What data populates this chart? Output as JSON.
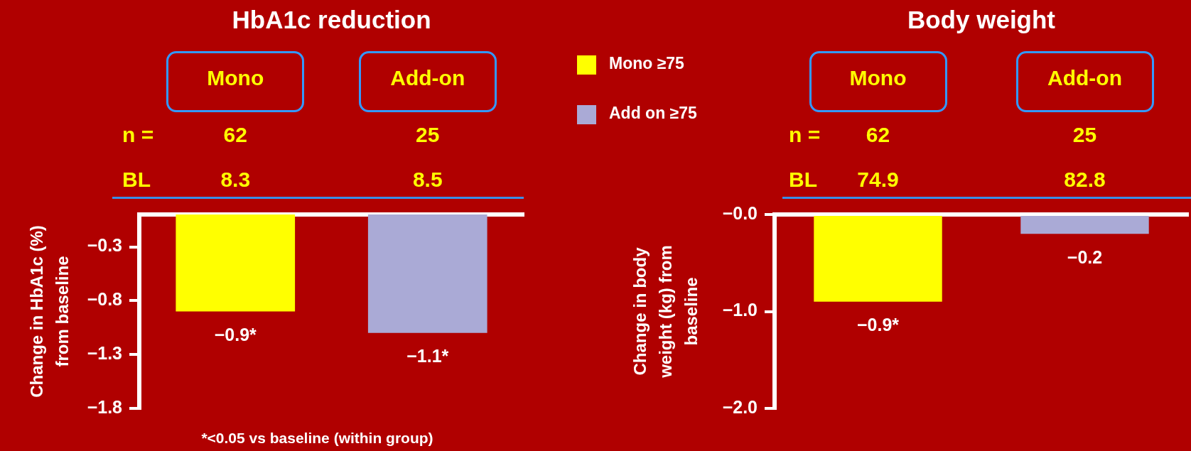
{
  "chart_data": [
    {
      "type": "bar",
      "title": "HbA1c reduction",
      "ylabel": "Change in HbA1c (%)\nfrom baseline",
      "categories": [
        "Mono",
        "Add-on"
      ],
      "series": [
        {
          "name": "Mono ≥75",
          "color": "#ffff00",
          "values": [
            -0.9,
            null
          ],
          "value_labels": [
            "−0.9*",
            null
          ]
        },
        {
          "name": "Add on ≥75",
          "color": "#aaaad6",
          "values": [
            null,
            -1.1
          ],
          "value_labels": [
            null,
            "−1.1*"
          ]
        }
      ],
      "ylim": [
        -1.8,
        0
      ],
      "yticks": [
        {
          "value": -0.3,
          "label": "−0.3"
        },
        {
          "value": -0.8,
          "label": "−0.8"
        },
        {
          "value": -1.3,
          "label": "−1.3"
        },
        {
          "value": -1.8,
          "label": "−1.8"
        }
      ],
      "grid": false,
      "legend": "right",
      "annotations": [
        "n =",
        "62",
        "25",
        "BL",
        "8.3",
        "8.5",
        "*<0.05 vs baseline (within group)"
      ]
    },
    {
      "type": "bar",
      "title": "Body weight",
      "ylabel": "Change in body\nweight (kg) from\nbaseline",
      "categories": [
        "Mono",
        "Add-on"
      ],
      "series": [
        {
          "color": "#ffff00",
          "values": [
            -0.9,
            null
          ],
          "value_labels": [
            "−0.9*",
            null
          ]
        },
        {
          "color": "#aaaad6",
          "values": [
            null,
            -0.2
          ],
          "value_labels": [
            null,
            "−0.2"
          ]
        }
      ],
      "ylim": [
        -2.0,
        0
      ],
      "yticks": [
        {
          "value": 0,
          "label": "−0.0"
        },
        {
          "value": -1.0,
          "label": "−1.0"
        },
        {
          "value": -2.0,
          "label": "−2.0"
        }
      ],
      "grid": false,
      "legend": false,
      "annotations": [
        "n =",
        "62",
        "25",
        "BL",
        "74.9",
        "82.8"
      ]
    }
  ]
}
